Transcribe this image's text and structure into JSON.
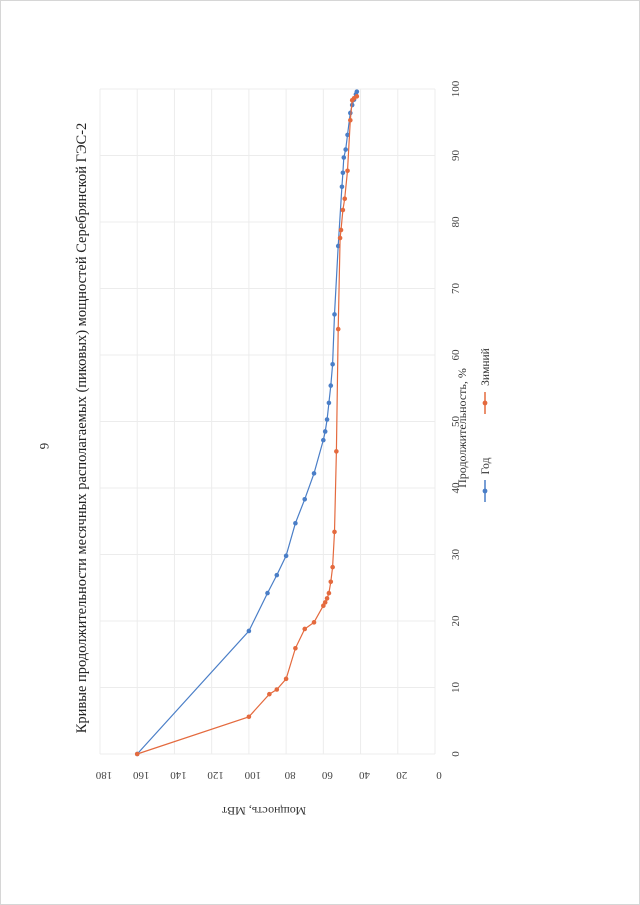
{
  "page": {
    "number": "6"
  },
  "chart_data": {
    "type": "line",
    "title": "Кривые продолжительности месячных располагаемых (пиковых) мощностей Серебрянской ГЭС-2",
    "xlabel": "Продолжительность, %",
    "ylabel": "Мощность, МВт",
    "xlim": [
      0,
      100
    ],
    "ylim": [
      0,
      180
    ],
    "xticks": [
      "0",
      "10",
      "20",
      "30",
      "40",
      "50",
      "60",
      "70",
      "80",
      "90",
      "100"
    ],
    "yticks": [
      "0",
      "20",
      "40",
      "60",
      "80",
      "100",
      "120",
      "140",
      "160",
      "180"
    ],
    "grid": true,
    "orientation": "rotated-90-clockwise",
    "legend_position": "bottom",
    "series": [
      {
        "name": "Год",
        "color": "#4a7ec7",
        "marker": "circle",
        "x": [
          0,
          18.5,
          24.2,
          26.9,
          29.8,
          34.7,
          38.3,
          42.2,
          47.2,
          48.5,
          50.3,
          52.8,
          55.4,
          58.6,
          66.1,
          76.4,
          85.3,
          87.4,
          89.7,
          90.9,
          93.1,
          96.4,
          97.6,
          98.4,
          99.2,
          99.6
        ],
        "y": [
          160,
          100,
          90,
          85,
          80,
          75,
          70,
          65,
          60,
          59,
          58,
          57,
          56,
          55,
          54,
          52,
          50,
          49.5,
          49,
          48,
          47,
          45.5,
          44.5,
          43.5,
          42.5,
          42
        ]
      },
      {
        "name": "Зимний",
        "color": "#e46a3e",
        "marker": "circle",
        "x": [
          0,
          5.6,
          9.0,
          9.7,
          11.3,
          15.9,
          18.8,
          19.8,
          22.3,
          22.8,
          23.4,
          24.2,
          25.9,
          28.1,
          33.4,
          45.5,
          63.9,
          77.6,
          78.8,
          81.8,
          83.5,
          87.7,
          95.3,
          98.3,
          98.6,
          98.9
        ],
        "y": [
          160,
          100,
          89,
          85,
          80,
          75,
          70,
          65,
          60,
          59,
          58,
          57,
          56,
          55,
          54,
          53,
          52,
          51,
          50.5,
          49.5,
          48.5,
          47,
          45.5,
          44.5,
          43.5,
          42
        ]
      }
    ]
  }
}
